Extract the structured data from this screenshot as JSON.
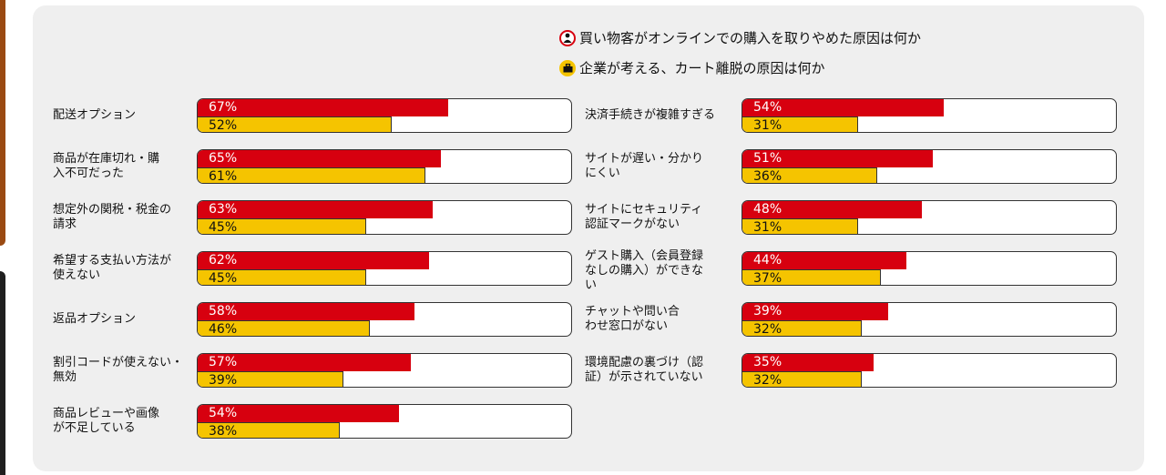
{
  "colors": {
    "red": "#d7000f",
    "yellow": "#f5c400"
  },
  "legend": [
    {
      "label": "買い物客がオンラインでの購入を取りやめた原因は何か",
      "icon": "person-icon",
      "color": "#d7000f"
    },
    {
      "label": "企業が考える、カート離脱の原因は何か",
      "icon": "briefcase-icon",
      "color": "#f5c400"
    }
  ],
  "chart_data": {
    "type": "bar",
    "orientation": "horizontal",
    "unit": "%",
    "xlim": [
      0,
      100
    ],
    "series": [
      {
        "name": "買い物客がオンラインでの購入を取りやめた原因は何か",
        "color": "#d7000f"
      },
      {
        "name": "企業が考える、カート離脱の原因は何か",
        "color": "#f5c400"
      }
    ],
    "columns": [
      [
        {
          "label": [
            "配送オプション"
          ],
          "values": [
            67,
            52
          ]
        },
        {
          "label": [
            "商品が在庫切れ・購",
            "入不可だった"
          ],
          "values": [
            65,
            61
          ]
        },
        {
          "label": [
            "想定外の関税・税金の",
            "請求"
          ],
          "values": [
            63,
            45
          ]
        },
        {
          "label": [
            "希望する支払い方法が",
            "使えない"
          ],
          "values": [
            62,
            45
          ]
        },
        {
          "label": [
            "返品オプション"
          ],
          "values": [
            58,
            46
          ]
        },
        {
          "label": [
            "割引コードが使えない・",
            "無効"
          ],
          "values": [
            57,
            39
          ]
        },
        {
          "label": [
            "商品レビューや画像",
            "が不足している"
          ],
          "values": [
            54,
            38
          ]
        }
      ],
      [
        {
          "label": [
            "決済手続きが複雑すぎる"
          ],
          "values": [
            54,
            31
          ]
        },
        {
          "label": [
            "サイトが遅い・分かり",
            "にくい"
          ],
          "values": [
            51,
            36
          ]
        },
        {
          "label": [
            "サイトにセキュリティ",
            "認証マークがない"
          ],
          "values": [
            48,
            31
          ]
        },
        {
          "label": [
            "ゲスト購入（会員登録",
            "なしの購入）ができな",
            "い"
          ],
          "values": [
            44,
            37
          ]
        },
        {
          "label": [
            "チャットや問い合",
            "わせ窓口がない"
          ],
          "values": [
            39,
            32
          ]
        },
        {
          "label": [
            "環境配慮の裏づけ（認",
            "証）が示されていない"
          ],
          "values": [
            35,
            32
          ]
        }
      ]
    ]
  }
}
